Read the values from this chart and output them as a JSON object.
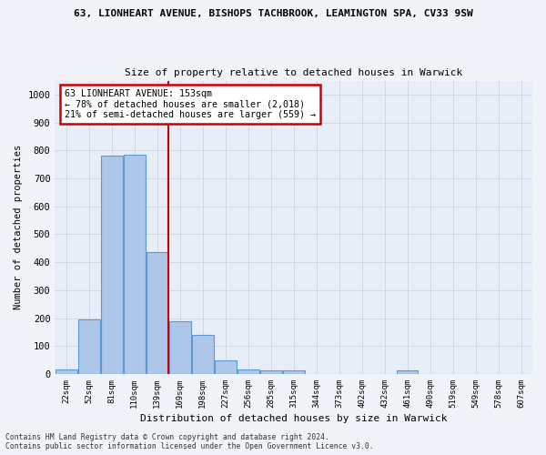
{
  "title_line1": "63, LIONHEART AVENUE, BISHOPS TACHBROOK, LEAMINGTON SPA, CV33 9SW",
  "title_line2": "Size of property relative to detached houses in Warwick",
  "xlabel": "Distribution of detached houses by size in Warwick",
  "ylabel": "Number of detached properties",
  "bar_labels": [
    "22sqm",
    "52sqm",
    "81sqm",
    "110sqm",
    "139sqm",
    "169sqm",
    "198sqm",
    "227sqm",
    "256sqm",
    "285sqm",
    "315sqm",
    "344sqm",
    "373sqm",
    "402sqm",
    "432sqm",
    "461sqm",
    "490sqm",
    "519sqm",
    "549sqm",
    "578sqm",
    "607sqm"
  ],
  "bar_values": [
    15,
    195,
    780,
    785,
    435,
    190,
    140,
    48,
    15,
    12,
    12,
    0,
    0,
    0,
    0,
    12,
    0,
    0,
    0,
    0,
    0
  ],
  "bar_color": "#aec6e8",
  "bar_edge_color": "#5b9bd5",
  "annotation_title": "63 LIONHEART AVENUE: 153sqm",
  "annotation_line2": "← 78% of detached houses are smaller (2,018)",
  "annotation_line3": "21% of semi-detached houses are larger (559) →",
  "annotation_box_color": "#ffffff",
  "annotation_box_edge": "#cc0000",
  "ylim": [
    0,
    1050
  ],
  "yticks": [
    0,
    100,
    200,
    300,
    400,
    500,
    600,
    700,
    800,
    900,
    1000
  ],
  "grid_color": "#d0d8e8",
  "background_color": "#e8eef8",
  "fig_background": "#f0f4f8",
  "footer_line1": "Contains HM Land Registry data © Crown copyright and database right 2024.",
  "footer_line2": "Contains public sector information licensed under the Open Government Licence v3.0."
}
